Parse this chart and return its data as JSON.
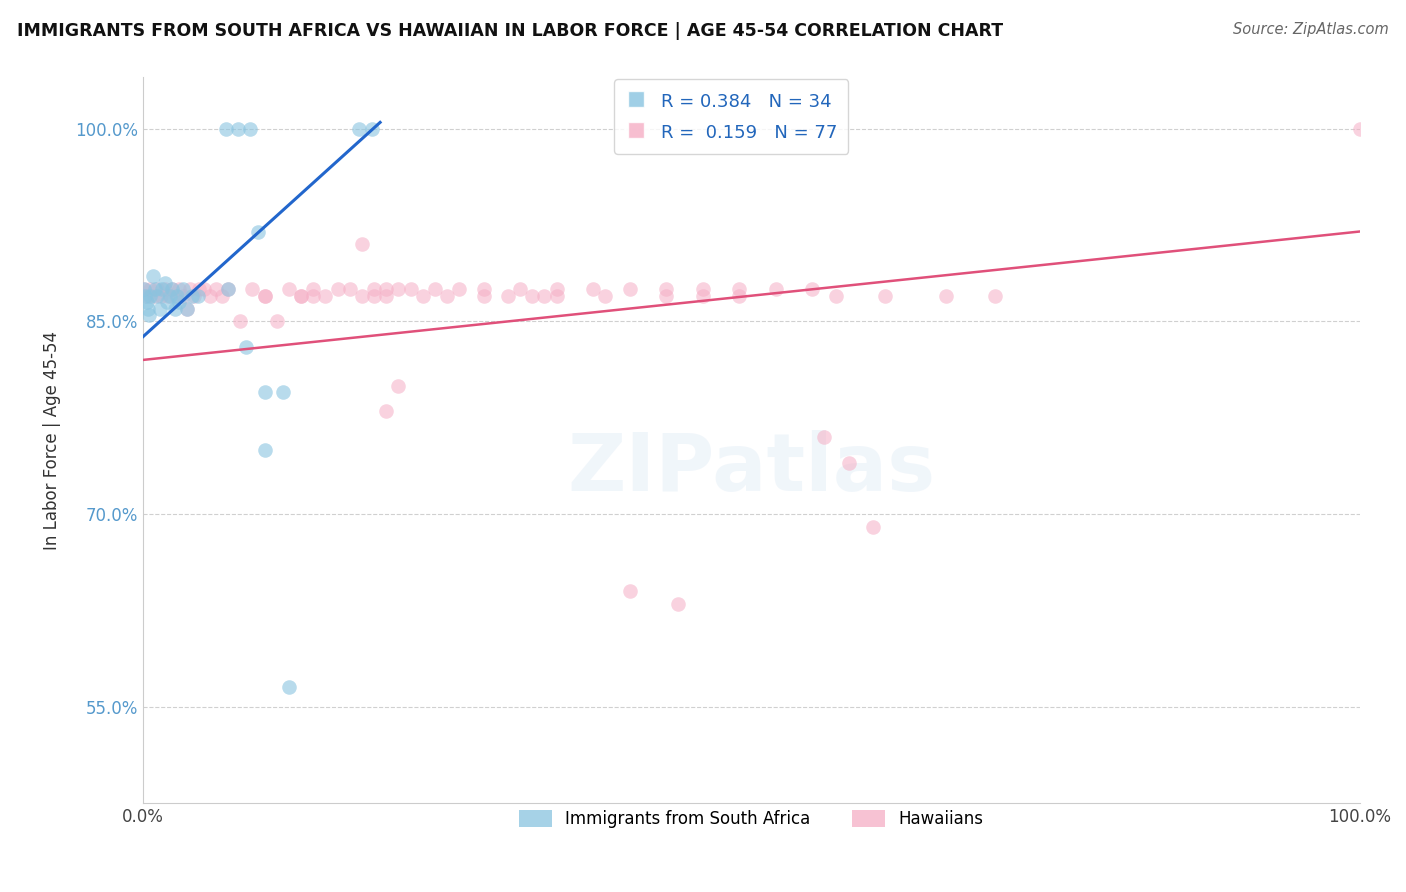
{
  "title": "IMMIGRANTS FROM SOUTH AFRICA VS HAWAIIAN IN LABOR FORCE | AGE 45-54 CORRELATION CHART",
  "source": "Source: ZipAtlas.com",
  "ylabel": "In Labor Force | Age 45-54",
  "xlim": [
    0.0,
    1.0
  ],
  "ylim": [
    0.475,
    1.04
  ],
  "blue_R": 0.384,
  "blue_N": 34,
  "pink_R": 0.159,
  "pink_N": 77,
  "blue_color": "#89c4e0",
  "pink_color": "#f5aec5",
  "blue_line_color": "#2266cc",
  "pink_line_color": "#e0507a",
  "legend_label_blue": "Immigrants from South Africa",
  "legend_label_pink": "Hawaiians",
  "ytick_positions": [
    0.55,
    0.7,
    0.85,
    1.0
  ],
  "ytick_labels": [
    "55.0%",
    "70.0%",
    "85.0%",
    "100.0%"
  ],
  "xtick_positions": [
    0.0,
    1.0
  ],
  "xtick_labels": [
    "0.0%",
    "100.0%"
  ],
  "blue_line": [
    [
      0.0,
      0.838
    ],
    [
      0.195,
      1.005
    ]
  ],
  "pink_line": [
    [
      0.0,
      0.82
    ],
    [
      1.0,
      0.92
    ]
  ],
  "blue_x": [
    0.068,
    0.078,
    0.088,
    0.178,
    0.188,
    0.001,
    0.002,
    0.003,
    0.004,
    0.005,
    0.006,
    0.008,
    0.01,
    0.012,
    0.014,
    0.016,
    0.018,
    0.02,
    0.022,
    0.024,
    0.026,
    0.028,
    0.03,
    0.033,
    0.036,
    0.04,
    0.045,
    0.07,
    0.085,
    0.095,
    0.1,
    0.12,
    0.1,
    0.115
  ],
  "blue_y": [
    1.0,
    1.0,
    1.0,
    1.0,
    1.0,
    0.875,
    0.87,
    0.865,
    0.86,
    0.855,
    0.87,
    0.885,
    0.875,
    0.87,
    0.86,
    0.875,
    0.88,
    0.865,
    0.87,
    0.875,
    0.86,
    0.87,
    0.865,
    0.875,
    0.86,
    0.87,
    0.87,
    0.875,
    0.83,
    0.92,
    0.75,
    0.565,
    0.795,
    0.795
  ],
  "pink_x": [
    0.001,
    0.003,
    0.006,
    0.009,
    0.012,
    0.015,
    0.018,
    0.021,
    0.024,
    0.027,
    0.03,
    0.033,
    0.036,
    0.039,
    0.042,
    0.046,
    0.05,
    0.055,
    0.06,
    0.065,
    0.07,
    0.08,
    0.09,
    0.1,
    0.11,
    0.12,
    0.13,
    0.14,
    0.15,
    0.16,
    0.17,
    0.18,
    0.19,
    0.2,
    0.21,
    0.22,
    0.24,
    0.26,
    0.28,
    0.31,
    0.34,
    0.37,
    0.4,
    0.43,
    0.46,
    0.49,
    0.52,
    0.55,
    0.33,
    0.1,
    0.18,
    0.2,
    0.13,
    0.14,
    0.19,
    0.2,
    0.21,
    0.23,
    0.25,
    0.28,
    0.3,
    0.32,
    0.34,
    0.38,
    0.43,
    0.46,
    0.49,
    0.57,
    0.61,
    0.66,
    0.7,
    1.0,
    0.56,
    0.58,
    0.4,
    0.44,
    0.6
  ],
  "pink_y": [
    0.875,
    0.87,
    0.875,
    0.87,
    0.875,
    0.87,
    0.875,
    0.87,
    0.875,
    0.87,
    0.875,
    0.87,
    0.86,
    0.875,
    0.87,
    0.875,
    0.875,
    0.87,
    0.875,
    0.87,
    0.875,
    0.85,
    0.875,
    0.87,
    0.85,
    0.875,
    0.87,
    0.875,
    0.87,
    0.875,
    0.875,
    0.91,
    0.875,
    0.875,
    0.875,
    0.875,
    0.875,
    0.875,
    0.875,
    0.875,
    0.875,
    0.875,
    0.875,
    0.875,
    0.875,
    0.875,
    0.875,
    0.875,
    0.87,
    0.87,
    0.87,
    0.87,
    0.87,
    0.87,
    0.87,
    0.78,
    0.8,
    0.87,
    0.87,
    0.87,
    0.87,
    0.87,
    0.87,
    0.87,
    0.87,
    0.87,
    0.87,
    0.87,
    0.87,
    0.87,
    0.87,
    1.0,
    0.76,
    0.74,
    0.64,
    0.63,
    0.69
  ]
}
